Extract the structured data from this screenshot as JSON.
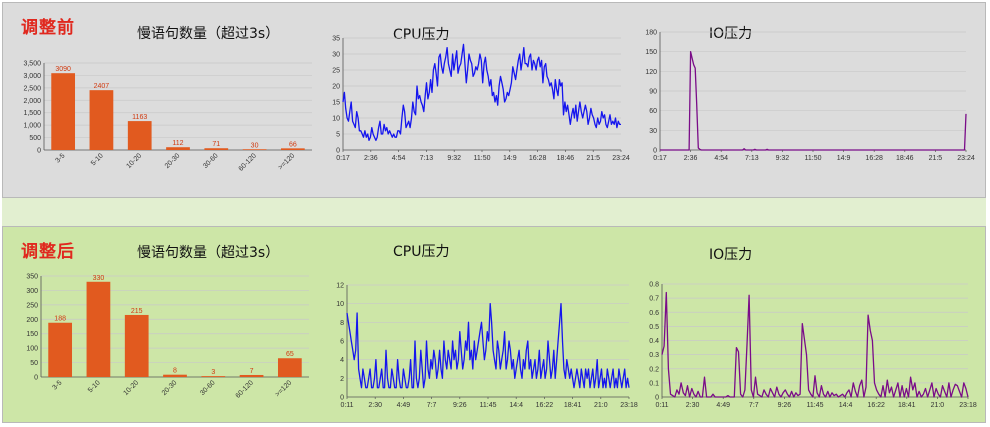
{
  "before": {
    "title": "调整前",
    "slow_title": "慢语句数量（超过3s）",
    "cpu_title": "CPU压力",
    "io_title": "IO压力"
  },
  "after": {
    "title": "调整后",
    "slow_title": "慢语句数量（超过3s）",
    "cpu_title": "CPU压力",
    "io_title": "IO压力"
  },
  "chart_data": [
    {
      "id": "before_slow",
      "type": "bar",
      "title": "慢语句数量（超过3s）",
      "categories": [
        "3-5",
        "5-10",
        "10-20",
        "20-30",
        "30-60",
        "60-120",
        ">=120"
      ],
      "values": [
        3090,
        2407,
        1163,
        112,
        71,
        30,
        66
      ],
      "ylim": [
        0,
        3500
      ],
      "yticks": [
        "0",
        "500",
        "1,000",
        "1,500",
        "2,000",
        "2,500",
        "3,000",
        "3,500"
      ],
      "color": "#e15a1f",
      "grid": true
    },
    {
      "id": "before_cpu",
      "type": "line",
      "title": "CPU压力",
      "xticks": [
        "0:17",
        "2:36",
        "4:54",
        "7:13",
        "9:32",
        "11:50",
        "14:9",
        "16:28",
        "18:46",
        "21:5",
        "23:24"
      ],
      "ylim": [
        0,
        35
      ],
      "yticks": [
        "0",
        "5",
        "10",
        "15",
        "20",
        "25",
        "30",
        "35"
      ],
      "color": "#1515ee",
      "grid": true,
      "series": [
        {
          "values": [
            15,
            18,
            13,
            10,
            9,
            12,
            15,
            9,
            8,
            7,
            12,
            10,
            6,
            6,
            5,
            4,
            6,
            4,
            5,
            3,
            4,
            7,
            5,
            4,
            3,
            4,
            7,
            9,
            5,
            5,
            8,
            6,
            7,
            5,
            6,
            5,
            4,
            5,
            4,
            4,
            6,
            6,
            5,
            10,
            14,
            12,
            7,
            8,
            9,
            7,
            10,
            15,
            12,
            11,
            20,
            16,
            17,
            15,
            14,
            12,
            17,
            21,
            16,
            18,
            22,
            18,
            25,
            27,
            24,
            20,
            29,
            30,
            26,
            24,
            27,
            29,
            32,
            27,
            25,
            23,
            30,
            25,
            28,
            31,
            24,
            26,
            27,
            30,
            33,
            27,
            21,
            25,
            30,
            28,
            27,
            23,
            24,
            26,
            25,
            27,
            30,
            28,
            21,
            27,
            29,
            25,
            23,
            20,
            22,
            17,
            18,
            15,
            17,
            14,
            20,
            23,
            21,
            19,
            15,
            16,
            18,
            17,
            19,
            21,
            26,
            24,
            22,
            25,
            28,
            30,
            25,
            28,
            32,
            27,
            27,
            26,
            29,
            30,
            25,
            28,
            27,
            25,
            28,
            29,
            26,
            28,
            21,
            26,
            27,
            23,
            22,
            20,
            21,
            19,
            16,
            22,
            19,
            17,
            22,
            20,
            21,
            11,
            15,
            12,
            14,
            11,
            8,
            11,
            13,
            10,
            14,
            9,
            12,
            15,
            12,
            10,
            12,
            14,
            12,
            8,
            10,
            13,
            11,
            10,
            8,
            7,
            10,
            8,
            9,
            12,
            10,
            11,
            8,
            7,
            9,
            11,
            8,
            9,
            8,
            10,
            7,
            9,
            8,
            8
          ]
        }
      ]
    },
    {
      "id": "before_io",
      "type": "line",
      "title": "IO压力",
      "xticks": [
        "0:17",
        "2:36",
        "4:54",
        "7:13",
        "9:32",
        "11:50",
        "14:9",
        "16:28",
        "18:46",
        "21:5",
        "23:24"
      ],
      "ylim": [
        0,
        180
      ],
      "yticks": [
        "0",
        "30",
        "60",
        "90",
        "120",
        "150",
        "180"
      ],
      "color": "#7a0c88",
      "grid": true,
      "series": [
        {
          "values": [
            0,
            0,
            0,
            0,
            0,
            0,
            0,
            0,
            0,
            0,
            0,
            0,
            0,
            0,
            0,
            0,
            0,
            0,
            0,
            0,
            150,
            140,
            130,
            125,
            70,
            3,
            1,
            0,
            0,
            0,
            0,
            0,
            0,
            0,
            0,
            0,
            0,
            0,
            0,
            0,
            0,
            0,
            0,
            0,
            0,
            0,
            0,
            0,
            0,
            0,
            0,
            0,
            0,
            0,
            0,
            2,
            0,
            0,
            0,
            0,
            0,
            0,
            1,
            0,
            0,
            0,
            0,
            0,
            0,
            0,
            1,
            0,
            0,
            0,
            0,
            0,
            0,
            0,
            0,
            0,
            0,
            0,
            0,
            0,
            0,
            0,
            0,
            0,
            0,
            0,
            0,
            0,
            0,
            0,
            0,
            0,
            0,
            0,
            0,
            0,
            0,
            0,
            0,
            0,
            0,
            0,
            0,
            0,
            0,
            0,
            0,
            0,
            0,
            0,
            0,
            0,
            0,
            0,
            0,
            0,
            0,
            0,
            0,
            0,
            0,
            0,
            0,
            0,
            0,
            0,
            0,
            0,
            0,
            0,
            0,
            0,
            0,
            0,
            0,
            0,
            0,
            0,
            0,
            0,
            0,
            0,
            0,
            0,
            0,
            0,
            0,
            0,
            0,
            0,
            0,
            0,
            0,
            0,
            0,
            0,
            0,
            0,
            0,
            0,
            0,
            0,
            0,
            0,
            0,
            0,
            0,
            0,
            0,
            0,
            0,
            0,
            0,
            0,
            0,
            0,
            0,
            0,
            0,
            0,
            0,
            0,
            0,
            0,
            0,
            0,
            0,
            0,
            0,
            0,
            0,
            0,
            0,
            0,
            0,
            0,
            55
          ]
        }
      ]
    },
    {
      "id": "after_slow",
      "type": "bar",
      "title": "慢语句数量（超过3s）",
      "categories": [
        "3-5",
        "5-10",
        "10-20",
        "20-30",
        "30-60",
        "60-120",
        ">=120"
      ],
      "values": [
        188,
        330,
        215,
        8,
        3,
        7,
        65
      ],
      "ylim": [
        0,
        350
      ],
      "yticks": [
        "0",
        "50",
        "100",
        "150",
        "200",
        "250",
        "300",
        "350"
      ],
      "color": "#e15a1f",
      "grid": true
    },
    {
      "id": "after_cpu",
      "type": "line",
      "title": "CPU压力",
      "xticks": [
        "0:11",
        "2:30",
        "4:49",
        "7:7",
        "9:26",
        "11:45",
        "14:4",
        "16:22",
        "18:41",
        "21:0",
        "23:18"
      ],
      "ylim": [
        0,
        12
      ],
      "yticks": [
        "0",
        "2",
        "4",
        "6",
        "8",
        "10",
        "12"
      ],
      "color": "#1515ee",
      "grid": true,
      "series": [
        {
          "values": [
            9,
            8,
            7,
            6,
            5,
            4,
            5,
            9,
            3,
            2,
            1,
            3,
            2,
            1,
            1,
            2,
            3,
            1,
            1,
            2,
            4,
            1,
            1,
            2,
            3,
            1,
            1,
            5,
            2,
            1,
            1,
            3,
            2,
            1,
            1,
            4,
            2,
            1,
            1,
            3,
            2,
            1,
            1,
            2,
            4,
            1,
            1,
            6,
            2,
            1,
            2,
            5,
            3,
            1,
            2,
            6,
            3,
            2,
            4,
            3,
            5,
            4,
            2,
            3,
            5,
            3,
            2,
            6,
            4,
            3,
            5,
            4,
            3,
            6,
            4,
            5,
            3,
            4,
            7,
            5,
            3,
            4,
            6,
            5,
            8,
            4,
            5,
            3,
            6,
            4,
            5,
            6,
            7,
            8,
            6,
            4,
            5,
            7,
            6,
            10,
            8,
            5,
            4,
            3,
            6,
            5,
            3,
            4,
            5,
            7,
            3,
            4,
            6,
            5,
            3,
            4,
            2,
            3,
            4,
            5,
            3,
            2,
            4,
            3,
            5,
            6,
            3,
            4,
            2,
            3,
            4,
            2,
            3,
            5,
            2,
            3,
            4,
            2,
            3,
            6,
            4,
            2,
            3,
            5,
            2,
            4,
            6,
            8,
            10,
            6,
            3,
            2,
            4,
            3,
            2,
            3,
            2,
            1,
            2,
            3,
            2,
            1,
            3,
            2,
            1,
            3,
            2,
            3,
            1,
            2,
            3,
            1,
            2,
            4,
            1,
            2,
            3,
            1,
            2,
            1,
            3,
            2,
            1,
            2,
            3,
            1,
            2,
            1,
            3,
            2,
            1,
            2,
            3,
            1,
            2,
            1
          ]
        }
      ]
    },
    {
      "id": "after_io",
      "type": "line",
      "title": "IO压力",
      "xticks": [
        "0:11",
        "2:30",
        "4:49",
        "7:7",
        "9:26",
        "11:45",
        "14:4",
        "16:22",
        "18:41",
        "21:0",
        "23:18"
      ],
      "ylim": [
        0,
        0.8
      ],
      "yticks": [
        "0",
        "0.1",
        "0.2",
        "0.3",
        "0.4",
        "0.5",
        "0.6",
        "0.7",
        "0.8"
      ],
      "color": "#7a0c88",
      "grid": true,
      "series": [
        {
          "values": [
            0.3,
            0.36,
            0.74,
            0.2,
            0.02,
            0.01,
            0.0,
            0.05,
            0.02,
            0.1,
            0.03,
            0.01,
            0.08,
            0.0,
            0.06,
            0.02,
            0.0,
            0.04,
            0.0,
            0.0,
            0.14,
            0.0,
            0.0,
            0.0,
            0.02,
            0.0,
            0.0,
            0.0,
            0.0,
            0.0,
            0.0,
            0.01,
            0.0,
            0.0,
            0.0,
            0.35,
            0.32,
            0.02,
            0.0,
            0.05,
            0.37,
            0.72,
            0.05,
            0.0,
            0.14,
            0.02,
            0.01,
            0.0,
            0.05,
            0.02,
            0.0,
            0.06,
            0.03,
            0.0,
            0.07,
            0.02,
            0.0,
            0.03,
            0.05,
            0.02,
            0.0,
            0.04,
            0.0,
            0.03,
            0.01,
            0.02,
            0.52,
            0.41,
            0.3,
            0.05,
            0.02,
            0.0,
            0.15,
            0.03,
            0.0,
            0.08,
            0.02,
            0.0,
            0.04,
            0.0,
            0.03,
            0.01,
            0.02,
            0.0,
            0.01,
            0.02,
            0.0,
            0.03,
            0.05,
            0.0,
            0.1,
            0.04,
            0.0,
            0.08,
            0.12,
            0.0,
            0.07,
            0.58,
            0.47,
            0.4,
            0.1,
            0.05,
            0.02,
            0.0,
            0.08,
            0.0,
            0.12,
            0.03,
            0.07,
            0.0,
            0.05,
            0.1,
            0.0,
            0.08,
            0.0,
            0.06,
            0.0,
            0.14,
            0.05,
            0.1,
            0.0,
            0.04,
            0.0,
            0.02,
            0.06,
            0.0,
            0.05,
            0.1,
            0.0,
            0.06,
            0.02,
            0.0,
            0.08,
            0.04,
            0.0,
            0.1,
            0.0,
            0.05,
            0.09,
            0.08,
            0.04,
            0.0,
            0.1,
            0.06,
            0.0
          ]
        }
      ]
    }
  ]
}
